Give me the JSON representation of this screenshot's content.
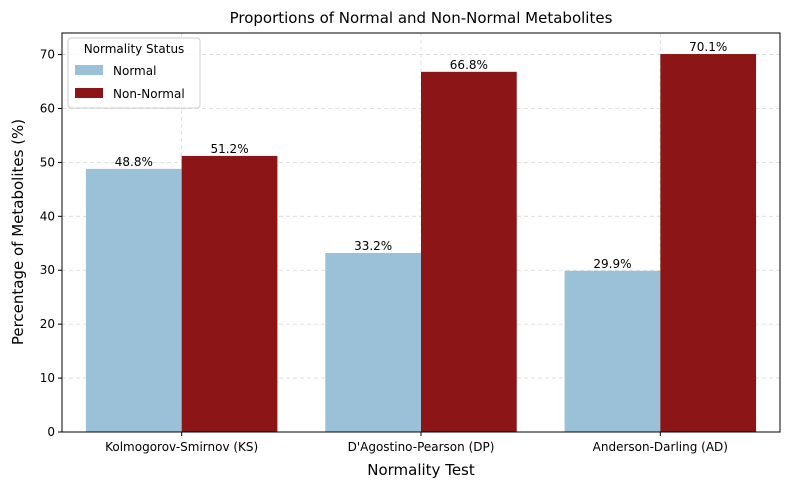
{
  "chart_data": {
    "type": "bar",
    "title": "Proportions of Normal and Non-Normal Metabolites",
    "xlabel": "Normality Test",
    "ylabel": "Percentage of Metabolites (%)",
    "categories": [
      "Kolmogorov-Smirnov (KS)",
      "D'Agostino-Pearson (DP)",
      "Anderson-Darling (AD)"
    ],
    "series": [
      {
        "name": "Normal",
        "values": [
          48.8,
          33.2,
          29.9
        ],
        "labels": [
          "48.8%",
          "33.2%",
          "29.9%"
        ],
        "color": "#9ac1d8"
      },
      {
        "name": "Non-Normal",
        "values": [
          51.2,
          66.8,
          70.1
        ],
        "labels": [
          "51.2%",
          "66.8%",
          "70.1%"
        ],
        "color": "#8b1517"
      }
    ],
    "ylim": [
      0,
      74
    ],
    "yticks": [
      0,
      10,
      20,
      30,
      40,
      50,
      60,
      70
    ],
    "grid": true,
    "legend": {
      "title": "Normality Status",
      "placement": "top-left"
    }
  }
}
